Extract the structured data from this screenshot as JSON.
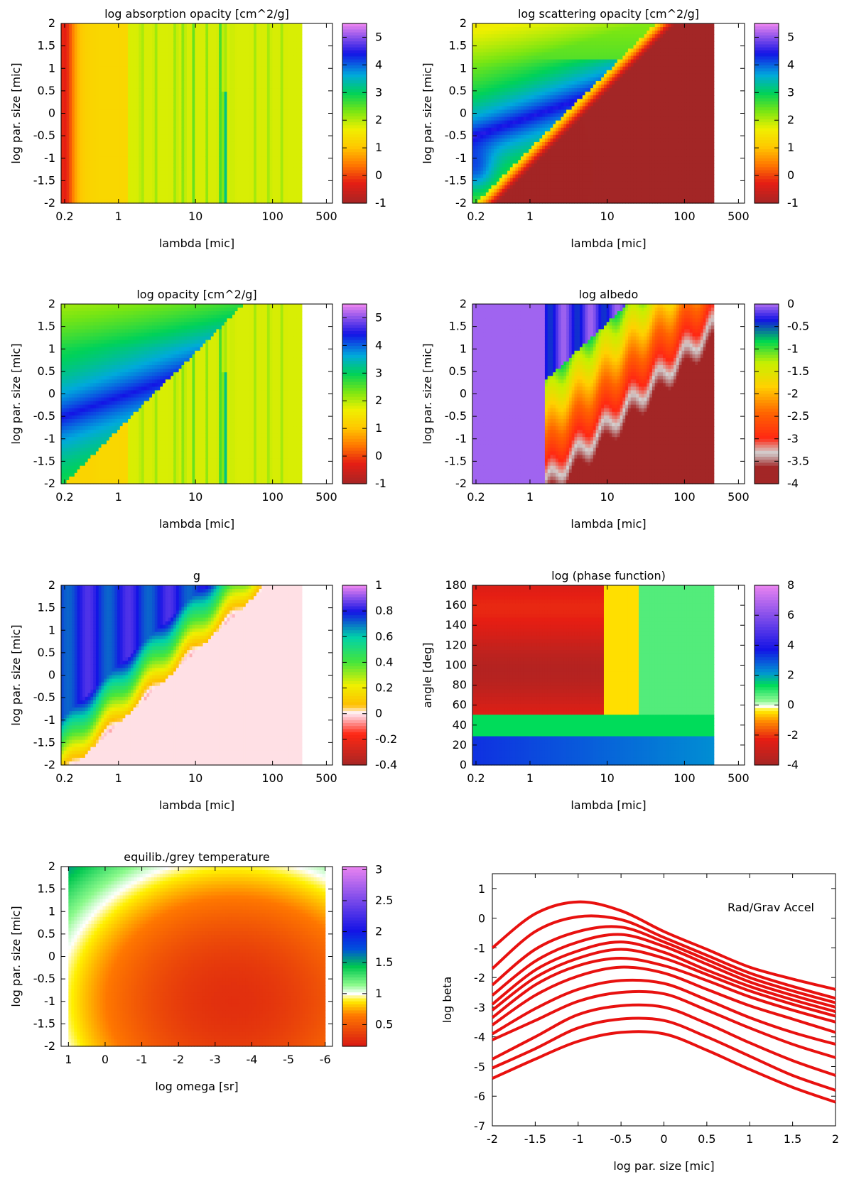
{
  "chart_data": [
    {
      "type": "heatmap",
      "title": "log absorption opacity [cm^2/g]",
      "xlabel": "lambda [mic]",
      "ylabel": "log par. size [mic]",
      "xscale": "log",
      "xlim": [
        0.18,
        600
      ],
      "ylim": [
        -2,
        2
      ],
      "xticks": [
        "0.2",
        "1",
        "10",
        "100",
        "500"
      ],
      "yticks": [
        "-2",
        "-1.5",
        "-1",
        "-0.5",
        "0",
        "0.5",
        "1",
        "1.5",
        "2"
      ],
      "colorbar": {
        "range": [
          -1,
          5.5
        ],
        "ticks": [
          "-1",
          "0",
          "1",
          "2",
          "3",
          "4",
          "5"
        ]
      },
      "data_xmax": 240,
      "pattern": "absorption"
    },
    {
      "type": "heatmap",
      "title": "log scattering opacity [cm^2/g]",
      "xlabel": "lambda [mic]",
      "ylabel": "log par. size [mic]",
      "xscale": "log",
      "xlim": [
        0.18,
        600
      ],
      "ylim": [
        -2,
        2
      ],
      "xticks": [
        "0.2",
        "1",
        "10",
        "100",
        "500"
      ],
      "yticks": [
        "-2",
        "-1.5",
        "-1",
        "-0.5",
        "0",
        "0.5",
        "1",
        "1.5",
        "2"
      ],
      "colorbar": {
        "range": [
          -1,
          5.5
        ],
        "ticks": [
          "-1",
          "0",
          "1",
          "2",
          "3",
          "4",
          "5"
        ]
      },
      "data_xmax": 240,
      "pattern": "scattering"
    },
    {
      "type": "heatmap",
      "title": "log opacity [cm^2/g]",
      "xlabel": "lambda [mic]",
      "ylabel": "log par. size [mic]",
      "xscale": "log",
      "xlim": [
        0.18,
        600
      ],
      "ylim": [
        -2,
        2
      ],
      "xticks": [
        "0.2",
        "1",
        "10",
        "100",
        "500"
      ],
      "yticks": [
        "-2",
        "-1.5",
        "-1",
        "-0.5",
        "0",
        "0.5",
        "1",
        "1.5",
        "2"
      ],
      "colorbar": {
        "range": [
          -1,
          5.5
        ],
        "ticks": [
          "-1",
          "0",
          "1",
          "2",
          "3",
          "4",
          "5"
        ]
      },
      "data_xmax": 240,
      "pattern": "total"
    },
    {
      "type": "heatmap",
      "title": "log albedo",
      "xlabel": "lambda [mic]",
      "ylabel": "log par. size [mic]",
      "xscale": "log",
      "xlim": [
        0.18,
        600
      ],
      "ylim": [
        -2,
        2
      ],
      "xticks": [
        "0.2",
        "1",
        "10",
        "100",
        "500"
      ],
      "yticks": [
        "-2",
        "-1.5",
        "-1",
        "-0.5",
        "0",
        "0.5",
        "1",
        "1.5",
        "2"
      ],
      "colorbar": {
        "range": [
          -4,
          0
        ],
        "ticks": [
          "-4",
          "-3.5",
          "-3",
          "-2.5",
          "-2",
          "-1.5",
          "-1",
          "-0.5",
          "0"
        ]
      },
      "data_xmax": 240,
      "pattern": "albedo"
    },
    {
      "type": "heatmap",
      "title": "g",
      "xlabel": "lambda [mic]",
      "ylabel": "log par. size [mic]",
      "xscale": "log",
      "xlim": [
        0.18,
        600
      ],
      "ylim": [
        -2,
        2
      ],
      "xticks": [
        "0.2",
        "1",
        "10",
        "100",
        "500"
      ],
      "yticks": [
        "-2",
        "-1.5",
        "-1",
        "-0.5",
        "0",
        "0.5",
        "1",
        "1.5",
        "2"
      ],
      "colorbar": {
        "range": [
          -0.4,
          1
        ],
        "ticks": [
          "-0.4",
          "-0.2",
          "0",
          "0.2",
          "0.4",
          "0.6",
          "0.8",
          "1"
        ]
      },
      "data_xmax": 240,
      "pattern": "g"
    },
    {
      "type": "heatmap",
      "title": "log (phase function)",
      "xlabel": "lambda [mic]",
      "ylabel": "angle [deg]",
      "xscale": "log",
      "xlim": [
        0.18,
        600
      ],
      "ylim": [
        0,
        180
      ],
      "xticks": [
        "0.2",
        "1",
        "10",
        "100",
        "500"
      ],
      "yticks": [
        "0",
        "20",
        "40",
        "60",
        "80",
        "100",
        "120",
        "140",
        "160",
        "180"
      ],
      "colorbar": {
        "range": [
          -4,
          8
        ],
        "ticks": [
          "-4",
          "-2",
          "0",
          "2",
          "4",
          "6",
          "8"
        ]
      },
      "data_xmax": 240,
      "pattern": "phase"
    },
    {
      "type": "heatmap",
      "title": "equilib./grey temperature",
      "xlabel": "log omega [sr]",
      "ylabel": "log par. size [mic]",
      "xscale": "linear",
      "xlim": [
        1.2,
        -6.2
      ],
      "ylim": [
        -2,
        2
      ],
      "xticks": [
        "1",
        "0",
        "-1",
        "-2",
        "-3",
        "-4",
        "-5",
        "-6"
      ],
      "yticks": [
        "-2",
        "-1.5",
        "-1",
        "-0.5",
        "0",
        "0.5",
        "1",
        "1.5",
        "2"
      ],
      "colorbar": {
        "range": [
          0.15,
          3.05
        ],
        "ticks": [
          "0.5",
          "1",
          "1.5",
          "2",
          "2.5",
          "3"
        ]
      },
      "data_xlim": [
        1.0,
        -6.0
      ],
      "pattern": "temperature"
    },
    {
      "type": "line",
      "title": "",
      "xlabel": "log par. size [mic]",
      "ylabel": "log beta",
      "xlim": [
        -2,
        2
      ],
      "ylim": [
        -7,
        1.5
      ],
      "xticks": [
        "-2",
        "-1.5",
        "-1",
        "-0.5",
        "0",
        "0.5",
        "1",
        "1.5",
        "2"
      ],
      "yticks": [
        "-7",
        "-6",
        "-5",
        "-4",
        "-3",
        "-2",
        "-1",
        "0",
        "1"
      ],
      "annotation": "Rad/Grav Accel",
      "color": "#e8110f",
      "x": [
        -2,
        -1.5,
        -1,
        -0.5,
        0,
        0.5,
        1,
        1.5,
        2
      ],
      "series": [
        {
          "values": [
            -1.0,
            0.15,
            0.55,
            0.25,
            -0.45,
            -1.05,
            -1.65,
            -2.05,
            -2.4
          ]
        },
        {
          "values": [
            -1.7,
            -0.45,
            0.05,
            -0.05,
            -0.65,
            -1.25,
            -1.85,
            -2.3,
            -2.7
          ]
        },
        {
          "values": [
            -2.25,
            -1.05,
            -0.45,
            -0.3,
            -0.8,
            -1.4,
            -2.0,
            -2.45,
            -2.85
          ]
        },
        {
          "values": [
            -2.6,
            -1.45,
            -0.8,
            -0.55,
            -0.95,
            -1.55,
            -2.15,
            -2.6,
            -3.0
          ]
        },
        {
          "values": [
            -2.9,
            -1.75,
            -1.1,
            -0.8,
            -1.15,
            -1.75,
            -2.3,
            -2.75,
            -3.15
          ]
        },
        {
          "values": [
            -3.1,
            -2.0,
            -1.35,
            -1.05,
            -1.35,
            -1.9,
            -2.45,
            -2.9,
            -3.3
          ]
        },
        {
          "values": [
            -3.35,
            -2.25,
            -1.6,
            -1.35,
            -1.6,
            -2.1,
            -2.65,
            -3.1,
            -3.5
          ]
        },
        {
          "values": [
            -3.6,
            -2.6,
            -1.95,
            -1.65,
            -1.85,
            -2.4,
            -2.95,
            -3.4,
            -3.85
          ]
        },
        {
          "values": [
            -3.9,
            -3.05,
            -2.4,
            -2.1,
            -2.2,
            -2.75,
            -3.35,
            -3.85,
            -4.25
          ]
        },
        {
          "values": [
            -4.1,
            -3.45,
            -2.8,
            -2.5,
            -2.55,
            -3.1,
            -3.7,
            -4.25,
            -4.7
          ]
        },
        {
          "values": [
            -4.75,
            -4.0,
            -3.25,
            -2.95,
            -3.0,
            -3.55,
            -4.2,
            -4.8,
            -5.3
          ]
        },
        {
          "values": [
            -5.05,
            -4.4,
            -3.7,
            -3.4,
            -3.45,
            -4.0,
            -4.65,
            -5.3,
            -5.8
          ]
        },
        {
          "values": [
            -5.4,
            -4.75,
            -4.15,
            -3.85,
            -3.9,
            -4.45,
            -5.1,
            -5.7,
            -6.2
          ]
        }
      ]
    }
  ]
}
